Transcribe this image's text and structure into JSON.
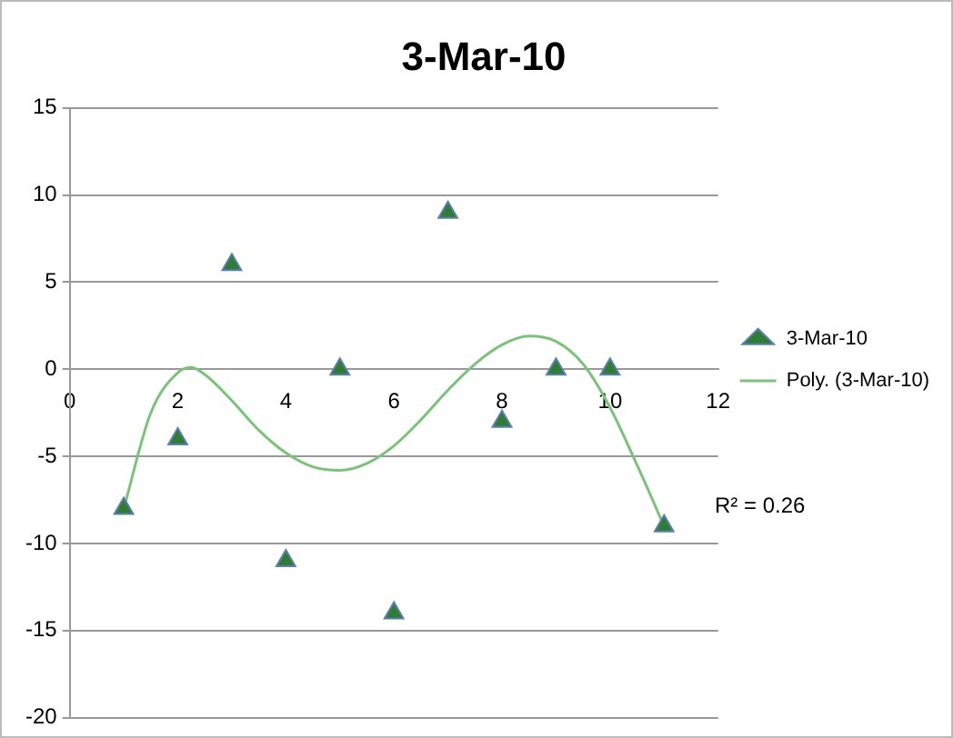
{
  "chart_data": {
    "type": "scatter",
    "title": "3-Mar-10",
    "series": [
      {
        "name": "3-Mar-10",
        "color": "#2e7d32",
        "marker": "triangle",
        "x": [
          1,
          2,
          3,
          4,
          5,
          6,
          7,
          8,
          9,
          10,
          11
        ],
        "values": [
          -8,
          -4,
          6,
          -11,
          0,
          -14,
          9,
          -3,
          0,
          0,
          -9
        ]
      },
      {
        "name": "Poly. (3-Mar-10)",
        "type": "line",
        "color": "#7ac47a",
        "marker": "none",
        "line_style": "solid",
        "x": [
          1,
          1.5,
          2,
          2.25,
          2.5,
          3,
          3.5,
          4,
          4.5,
          5,
          5.5,
          6,
          6.5,
          7,
          7.5,
          8,
          8.5,
          9,
          9.5,
          10,
          10.5,
          11
        ],
        "values": [
          -8,
          -2.5,
          -0.2,
          0.1,
          -0.3,
          -1.8,
          -3.5,
          -4.8,
          -5.6,
          -5.8,
          -5.4,
          -4.4,
          -2.9,
          -1.2,
          0.3,
          1.4,
          1.9,
          1.6,
          0.3,
          -2.2,
          -5.5,
          -9
        ]
      }
    ],
    "xlim": [
      0,
      12
    ],
    "xticks": [
      0,
      2,
      4,
      6,
      8,
      10,
      12
    ],
    "ylim": [
      -20,
      15
    ],
    "yticks": [
      -20,
      -15,
      -10,
      -5,
      0,
      5,
      10,
      15
    ],
    "grid": "y",
    "legend": "right",
    "annotations": [
      "R² = 0.26"
    ]
  }
}
